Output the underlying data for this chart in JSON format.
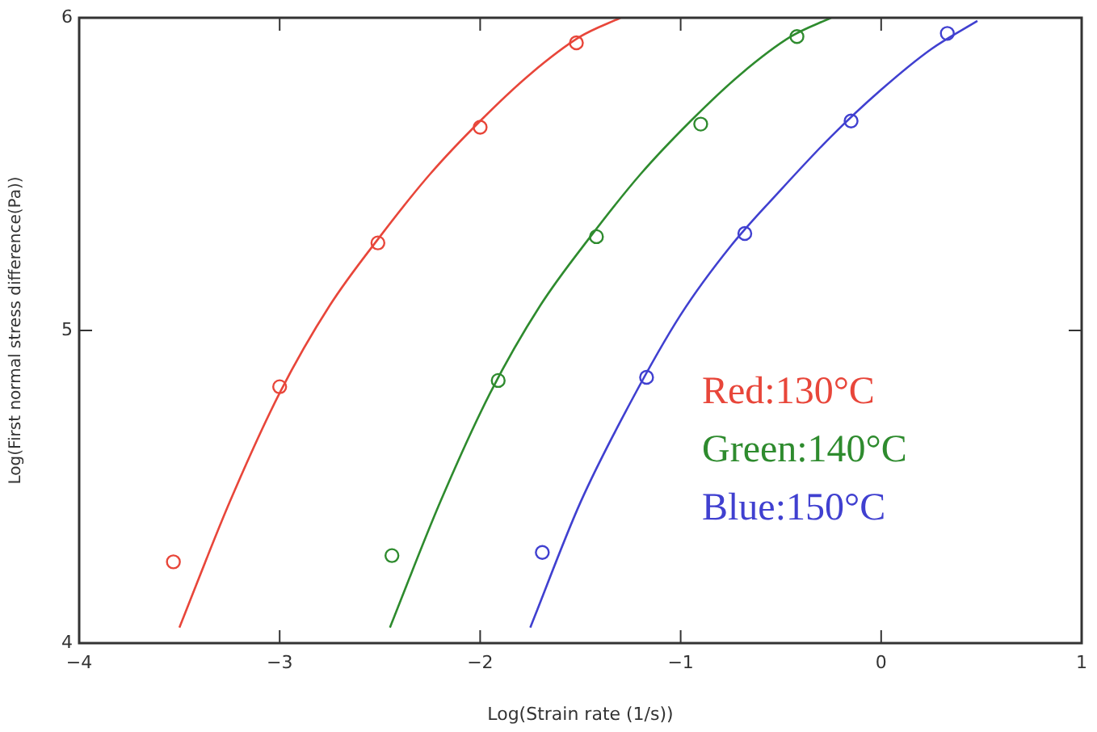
{
  "chart_data": {
    "type": "scatter",
    "xlabel": "Log(Strain rate (1/s))",
    "ylabel": "Log(First normal stress difference(Pa))",
    "xlim": [
      -4,
      1
    ],
    "xticks": [
      -4,
      -3,
      -2,
      -1,
      0,
      1
    ],
    "ylim": [
      4,
      6
    ],
    "yticks": [
      4,
      5,
      6
    ],
    "grid": false,
    "legend": "right",
    "marker": "circle",
    "series": [
      {
        "name": "Red:130°C",
        "type": "scatter",
        "color": "#e8463a",
        "x": [
          -3.53,
          -3.0,
          -2.51,
          -2.0,
          -1.52
        ],
        "values": [
          4.26,
          4.82,
          5.28,
          5.65,
          5.92
        ]
      },
      {
        "name": "Green:140°C",
        "type": "scatter",
        "color": "#2e8b2e",
        "x": [
          -2.44,
          -1.91,
          -1.42,
          -0.9,
          -0.42
        ],
        "values": [
          4.28,
          4.84,
          5.3,
          5.66,
          5.94
        ]
      },
      {
        "name": "Blue:150°C",
        "type": "scatter",
        "color": "#4040d0",
        "x": [
          -1.69,
          -1.17,
          -0.68,
          -0.15,
          0.33
        ],
        "values": [
          4.29,
          4.85,
          5.31,
          5.67,
          5.95
        ]
      },
      {
        "type": "line",
        "color": "#e8463a",
        "line_style": "solid",
        "marker": "none",
        "x": [
          -3.5,
          -3.25,
          -3.0,
          -2.75,
          -2.5,
          -2.25,
          -2.0,
          -1.75,
          -1.5,
          -1.3
        ],
        "values": [
          4.05,
          4.45,
          4.8,
          5.08,
          5.3,
          5.5,
          5.67,
          5.82,
          5.94,
          6.0
        ]
      },
      {
        "type": "line",
        "color": "#2e8b2e",
        "line_style": "solid",
        "marker": "none",
        "x": [
          -2.45,
          -2.2,
          -1.95,
          -1.7,
          -1.45,
          -1.2,
          -0.95,
          -0.7,
          -0.45,
          -0.25
        ],
        "values": [
          4.05,
          4.45,
          4.8,
          5.08,
          5.3,
          5.5,
          5.67,
          5.82,
          5.94,
          6.0
        ]
      },
      {
        "type": "line",
        "color": "#4040d0",
        "line_style": "solid",
        "marker": "none",
        "x": [
          -1.75,
          -1.5,
          -1.25,
          -1.0,
          -0.75,
          -0.5,
          -0.25,
          0.0,
          0.25,
          0.48
        ],
        "values": [
          4.05,
          4.45,
          4.77,
          5.05,
          5.27,
          5.45,
          5.62,
          5.77,
          5.9,
          5.99
        ]
      }
    ]
  }
}
